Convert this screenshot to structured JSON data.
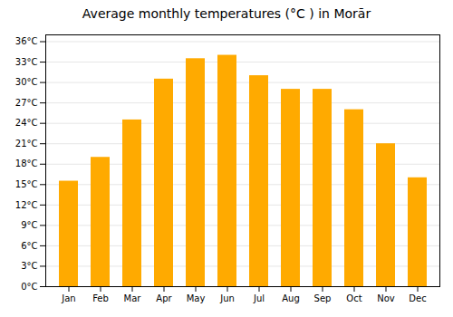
{
  "chart_data": {
    "type": "bar",
    "title": "Average monthly temperatures (°C ) in Morār",
    "categories": [
      "Jan",
      "Feb",
      "Mar",
      "Apr",
      "May",
      "Jun",
      "Jul",
      "Aug",
      "Sep",
      "Oct",
      "Nov",
      "Dec"
    ],
    "values": [
      15.5,
      19.0,
      24.5,
      30.5,
      33.5,
      34.0,
      31.0,
      29.0,
      29.0,
      26.0,
      21.0,
      16.0
    ],
    "color": "#FFAA00",
    "ylim": [
      0,
      37
    ],
    "yticks": [
      {
        "value": 0,
        "label": "0°C"
      },
      {
        "value": 3,
        "label": "3°C"
      },
      {
        "value": 6,
        "label": "6°C"
      },
      {
        "value": 9,
        "label": "9°C"
      },
      {
        "value": 12,
        "label": "12°C"
      },
      {
        "value": 15,
        "label": "15°C"
      },
      {
        "value": 18,
        "label": "18°C"
      },
      {
        "value": 21,
        "label": "21°C"
      },
      {
        "value": 24,
        "label": "24°C"
      },
      {
        "value": 27,
        "label": "27°C"
      },
      {
        "value": 30,
        "label": "30°C"
      },
      {
        "value": 33,
        "label": "33°C"
      },
      {
        "value": 36,
        "label": "36°C"
      }
    ],
    "grid": true
  }
}
